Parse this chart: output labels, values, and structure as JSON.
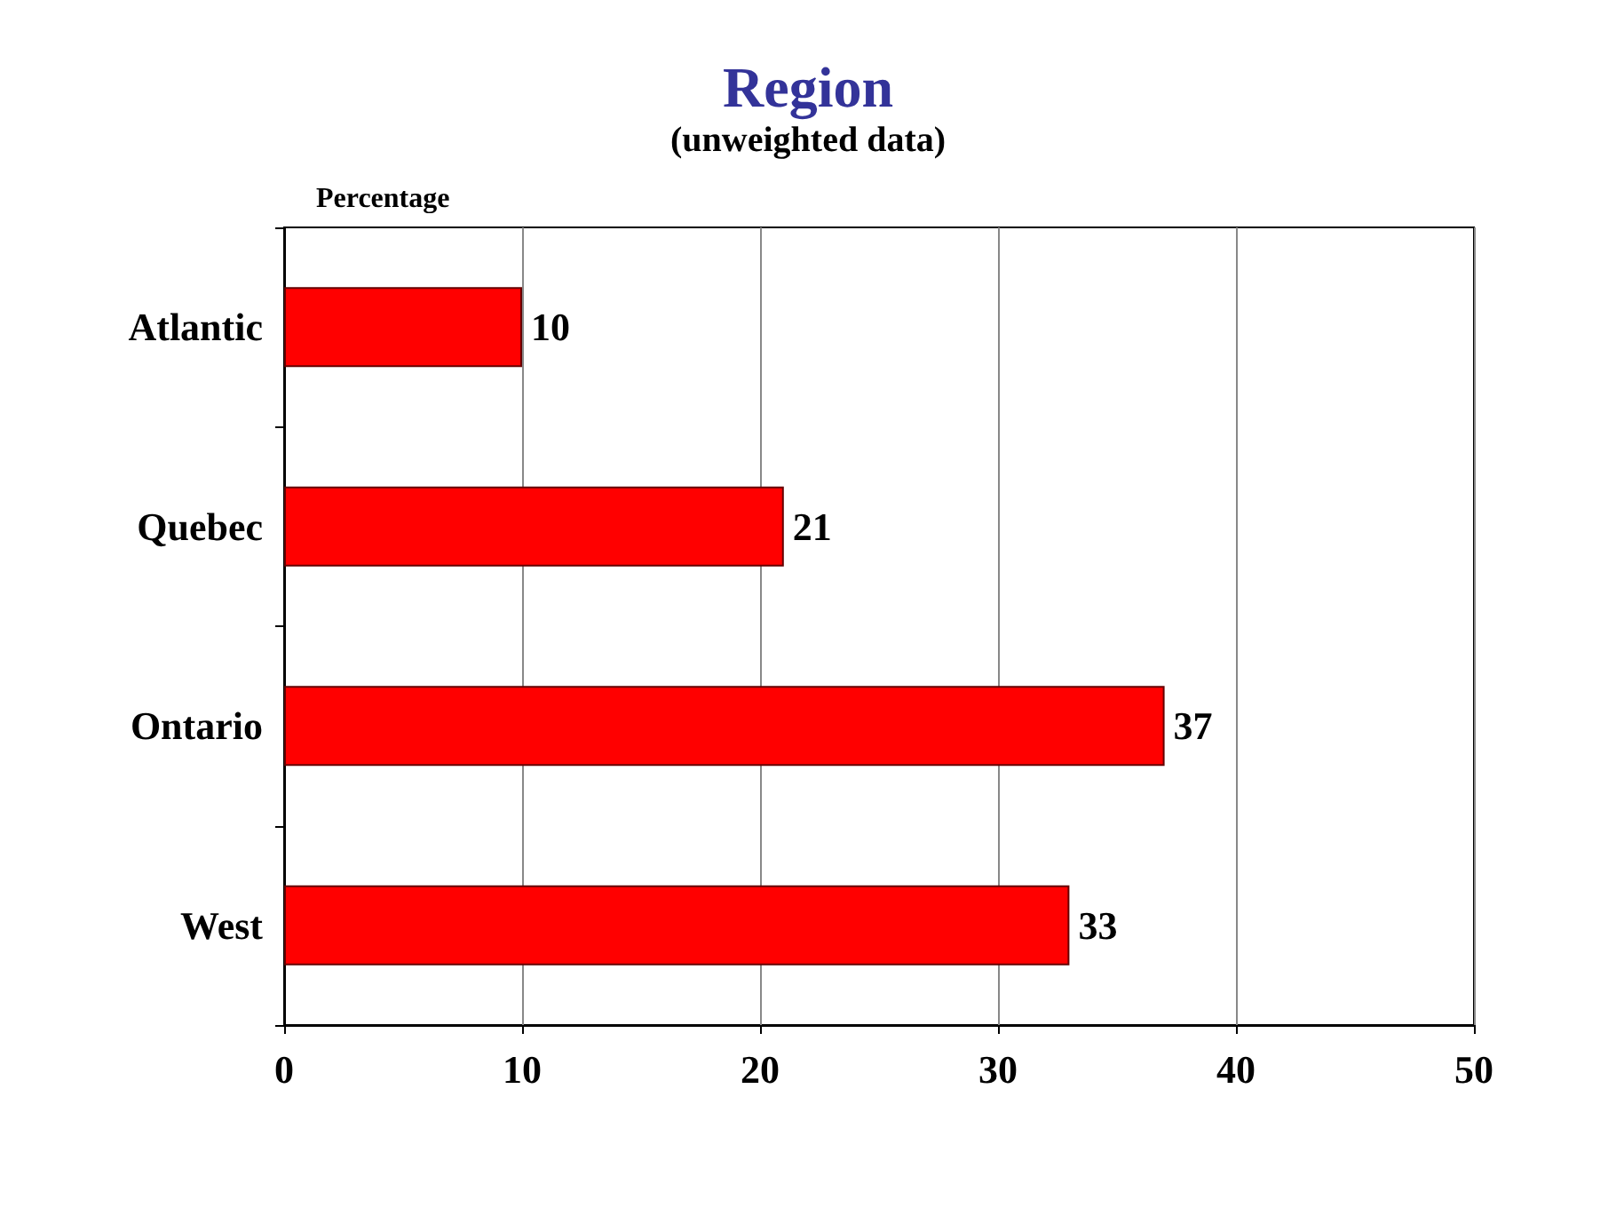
{
  "chart_data": {
    "type": "bar",
    "orientation": "horizontal",
    "title": "Region",
    "subtitle": "(unweighted data)",
    "xlabel": "Percentage",
    "categories": [
      "Atlantic",
      "Quebec",
      "Ontario",
      "West"
    ],
    "values": [
      10,
      21,
      37,
      33
    ],
    "color": "#ff0000",
    "xlim": [
      0,
      50
    ],
    "xticks": [
      0,
      10,
      20,
      30,
      40,
      50
    ],
    "grid": "x",
    "data_labels": true
  }
}
